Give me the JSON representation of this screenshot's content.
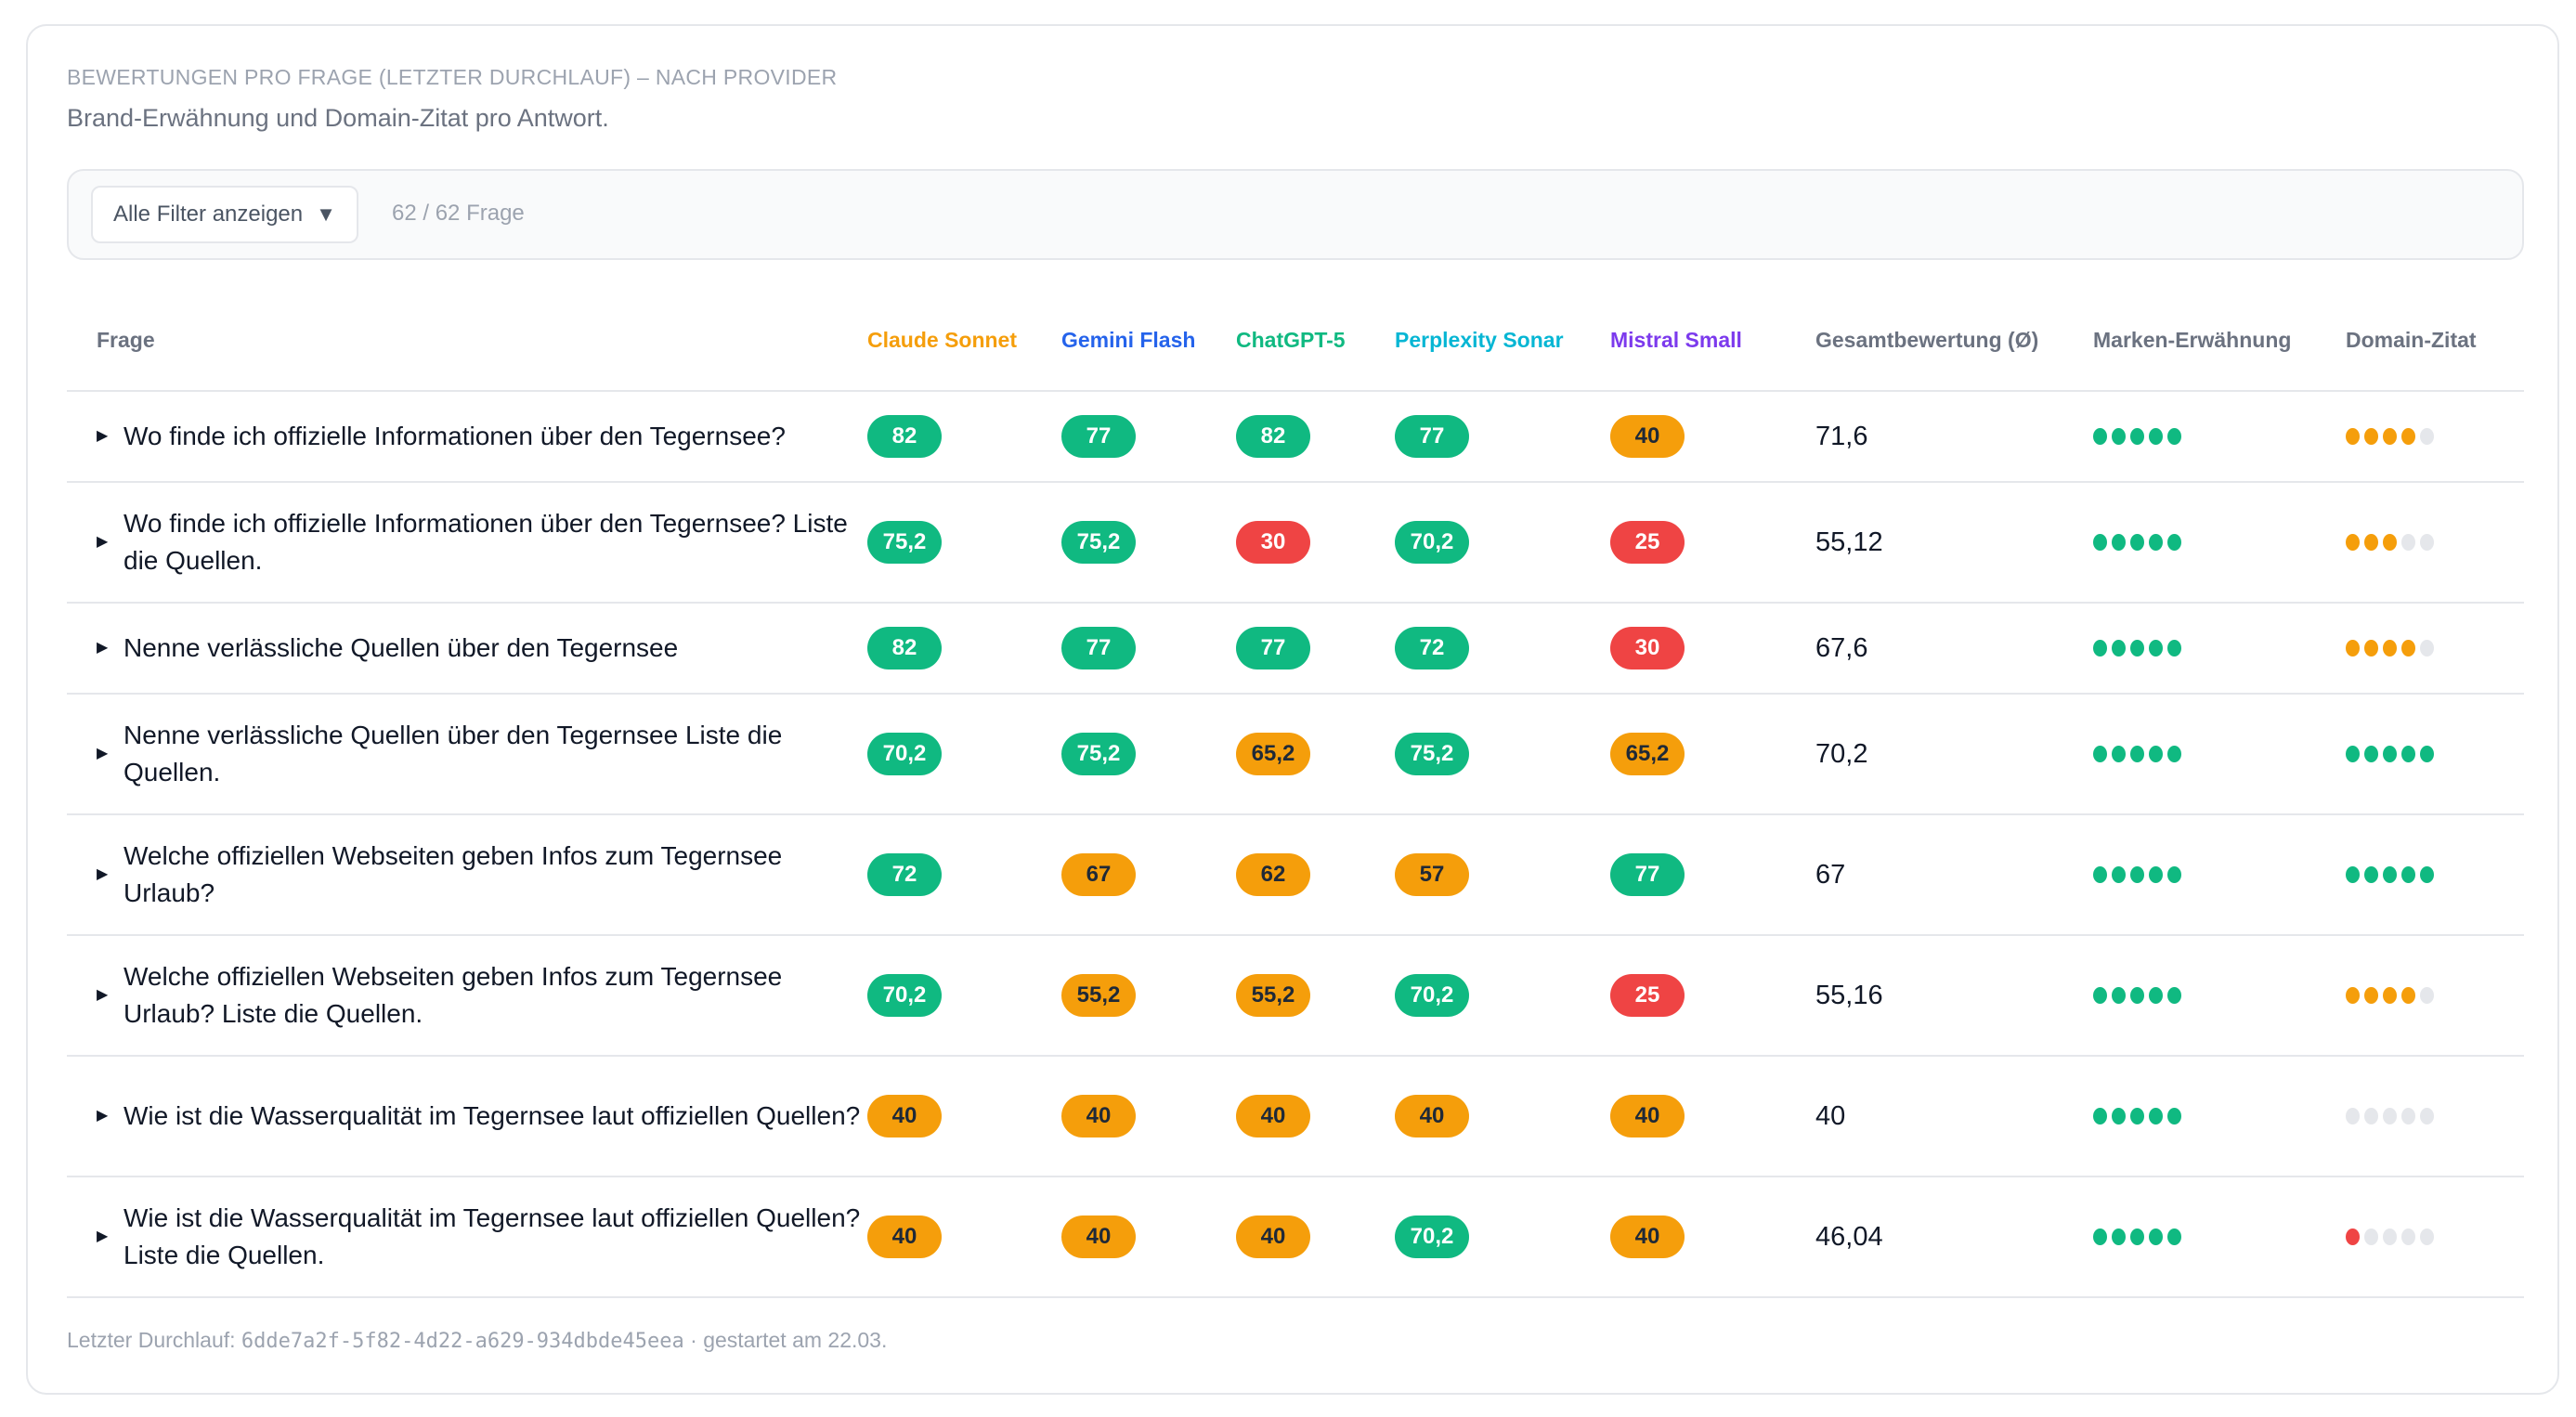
{
  "header": {
    "eyebrow": "BEWERTUNGEN PRO FRAGE (LETZTER DURCHLAUF) – NACH PROVIDER",
    "subtitle": "Brand-Erwähnung und Domain-Zitat pro Antwort."
  },
  "filter": {
    "button_label": "Alle Filter anzeigen",
    "caret_icon": "triangle-down",
    "count": "62 / 62 Frage"
  },
  "colors": {
    "green": "#10b981",
    "orange": "#f59e0b",
    "red": "#ef4444",
    "gray": "#e5e7eb"
  },
  "columns": [
    {
      "label": "Frage",
      "color": "#6b7280"
    },
    {
      "label": "Claude Sonnet",
      "color": "#f59e0b"
    },
    {
      "label": "Gemini Flash",
      "color": "#2563eb"
    },
    {
      "label": "ChatGPT-5",
      "color": "#10b981"
    },
    {
      "label": "Perplexity Sonar",
      "color": "#06b6d4"
    },
    {
      "label": "Mistral Small",
      "color": "#7c3aed"
    },
    {
      "label": "Gesamtbewertung (Ø)",
      "color": "#6b7280"
    },
    {
      "label": "Marken-Erwähnung",
      "color": "#6b7280"
    },
    {
      "label": "Domain-Zitat",
      "color": "#6b7280"
    }
  ],
  "rows": [
    {
      "question": "Wo finde ich offizielle Informationen über den Tegernsee?",
      "scores": [
        {
          "v": "82",
          "c": "green"
        },
        {
          "v": "77",
          "c": "green"
        },
        {
          "v": "82",
          "c": "green"
        },
        {
          "v": "77",
          "c": "green"
        },
        {
          "v": "40",
          "c": "orange"
        }
      ],
      "total": "71,6",
      "brand": {
        "filled": 5,
        "color": "green"
      },
      "domain": {
        "filled": 4,
        "color": "orange"
      }
    },
    {
      "question": "Wo finde ich offizielle Informationen über den Tegernsee? Liste die Quellen.",
      "scores": [
        {
          "v": "75,2",
          "c": "green"
        },
        {
          "v": "75,2",
          "c": "green"
        },
        {
          "v": "30",
          "c": "red"
        },
        {
          "v": "70,2",
          "c": "green"
        },
        {
          "v": "25",
          "c": "red"
        }
      ],
      "total": "55,12",
      "brand": {
        "filled": 5,
        "color": "green"
      },
      "domain": {
        "filled": 3,
        "color": "orange"
      }
    },
    {
      "question": "Nenne verlässliche Quellen über den Tegernsee",
      "scores": [
        {
          "v": "82",
          "c": "green"
        },
        {
          "v": "77",
          "c": "green"
        },
        {
          "v": "77",
          "c": "green"
        },
        {
          "v": "72",
          "c": "green"
        },
        {
          "v": "30",
          "c": "red"
        }
      ],
      "total": "67,6",
      "brand": {
        "filled": 5,
        "color": "green"
      },
      "domain": {
        "filled": 4,
        "color": "orange"
      }
    },
    {
      "question": "Nenne verlässliche Quellen über den Tegernsee Liste die Quellen.",
      "scores": [
        {
          "v": "70,2",
          "c": "green"
        },
        {
          "v": "75,2",
          "c": "green"
        },
        {
          "v": "65,2",
          "c": "orange"
        },
        {
          "v": "75,2",
          "c": "green"
        },
        {
          "v": "65,2",
          "c": "orange"
        }
      ],
      "total": "70,2",
      "brand": {
        "filled": 5,
        "color": "green"
      },
      "domain": {
        "filled": 5,
        "color": "green"
      }
    },
    {
      "question": "Welche offiziellen Webseiten geben Infos zum Tegernsee Urlaub?",
      "scores": [
        {
          "v": "72",
          "c": "green"
        },
        {
          "v": "67",
          "c": "orange"
        },
        {
          "v": "62",
          "c": "orange"
        },
        {
          "v": "57",
          "c": "orange"
        },
        {
          "v": "77",
          "c": "green"
        }
      ],
      "total": "67",
      "brand": {
        "filled": 5,
        "color": "green"
      },
      "domain": {
        "filled": 5,
        "color": "green"
      }
    },
    {
      "question": "Welche offiziellen Webseiten geben Infos zum Tegernsee Urlaub? Liste die Quellen.",
      "scores": [
        {
          "v": "70,2",
          "c": "green"
        },
        {
          "v": "55,2",
          "c": "orange"
        },
        {
          "v": "55,2",
          "c": "orange"
        },
        {
          "v": "70,2",
          "c": "green"
        },
        {
          "v": "25",
          "c": "red"
        }
      ],
      "total": "55,16",
      "brand": {
        "filled": 5,
        "color": "green"
      },
      "domain": {
        "filled": 4,
        "color": "orange"
      }
    },
    {
      "question": "Wie ist die Wasserqualität im Tegernsee laut offiziellen Quellen?",
      "scores": [
        {
          "v": "40",
          "c": "orange"
        },
        {
          "v": "40",
          "c": "orange"
        },
        {
          "v": "40",
          "c": "orange"
        },
        {
          "v": "40",
          "c": "orange"
        },
        {
          "v": "40",
          "c": "orange"
        }
      ],
      "total": "40",
      "brand": {
        "filled": 5,
        "color": "green"
      },
      "domain": {
        "filled": 0,
        "color": "gray"
      }
    },
    {
      "question": "Wie ist die Wasserqualität im Tegernsee laut offiziellen Quellen? Liste die Quellen.",
      "scores": [
        {
          "v": "40",
          "c": "orange"
        },
        {
          "v": "40",
          "c": "orange"
        },
        {
          "v": "40",
          "c": "orange"
        },
        {
          "v": "70,2",
          "c": "green"
        },
        {
          "v": "40",
          "c": "orange"
        }
      ],
      "total": "46,04",
      "brand": {
        "filled": 5,
        "color": "green"
      },
      "domain": {
        "filled": 1,
        "color": "red"
      }
    },
    {
      "question": "",
      "scores": [
        {
          "v": "",
          "c": "red"
        },
        {
          "v": "",
          "c": "red"
        },
        {
          "v": "",
          "c": "red"
        },
        {
          "v": "",
          "c": "red"
        },
        {
          "v": "",
          "c": "red"
        }
      ],
      "total": "",
      "brand": null,
      "domain": null
    }
  ],
  "footer": {
    "prefix": "Letzter Durchlauf: ",
    "run_id": "6dde7a2f-5f82-4d22-a629-934dbde45eea",
    "suffix": " · gestartet am 22.03."
  }
}
